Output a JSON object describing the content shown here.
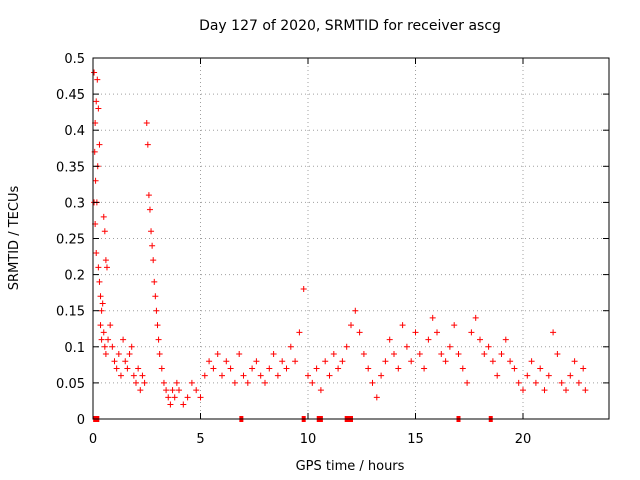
{
  "chart_data": {
    "type": "scatter",
    "title": "Day 127 of 2020, SRMTID for receiver ascg",
    "xlabel": "GPS time / hours",
    "ylabel": "SRMTID / TECUs",
    "xlim": [
      0,
      24
    ],
    "ylim": [
      0,
      0.5
    ],
    "xticks": [
      0,
      5,
      10,
      15,
      20
    ],
    "xtick_labels": [
      "0",
      "5",
      "10",
      "15",
      "20"
    ],
    "yticks": [
      0,
      0.05,
      0.1,
      0.15,
      0.2,
      0.25,
      0.3,
      0.35,
      0.4,
      0.45,
      0.5
    ],
    "ytick_labels": [
      "0",
      "0.05",
      "0.1",
      "0.15",
      "0.2",
      "0.25",
      "0.3",
      "0.35",
      "0.4",
      "0.45",
      "0.5"
    ],
    "grid": true,
    "marker": "+",
    "series": [
      {
        "name": "SRMTID",
        "color": "#ff0000",
        "points": [
          [
            0.05,
            0.48
          ],
          [
            0.1,
            0.41
          ],
          [
            0.08,
            0.37
          ],
          [
            0.15,
            0.44
          ],
          [
            0.2,
            0.47
          ],
          [
            0.25,
            0.43
          ],
          [
            0.3,
            0.38
          ],
          [
            0.12,
            0.33
          ],
          [
            0.18,
            0.3
          ],
          [
            0.22,
            0.35
          ],
          [
            0.05,
            0.3
          ],
          [
            0.1,
            0.27
          ],
          [
            0.15,
            0.23
          ],
          [
            0.25,
            0.21
          ],
          [
            0.3,
            0.19
          ],
          [
            0.35,
            0.17
          ],
          [
            0.4,
            0.15
          ],
          [
            0.45,
            0.16
          ],
          [
            0.5,
            0.28
          ],
          [
            0.55,
            0.26
          ],
          [
            0.6,
            0.22
          ],
          [
            0.65,
            0.21
          ],
          [
            0.35,
            0.13
          ],
          [
            0.4,
            0.11
          ],
          [
            0.5,
            0.12
          ],
          [
            0.55,
            0.1
          ],
          [
            0.6,
            0.09
          ],
          [
            0.7,
            0.11
          ],
          [
            0.8,
            0.13
          ],
          [
            0.9,
            0.1
          ],
          [
            1.0,
            0.08
          ],
          [
            1.1,
            0.07
          ],
          [
            1.2,
            0.09
          ],
          [
            1.3,
            0.06
          ],
          [
            1.4,
            0.11
          ],
          [
            1.5,
            0.08
          ],
          [
            1.6,
            0.07
          ],
          [
            1.7,
            0.09
          ],
          [
            1.8,
            0.1
          ],
          [
            1.9,
            0.06
          ],
          [
            2.0,
            0.05
          ],
          [
            2.1,
            0.07
          ],
          [
            2.2,
            0.04
          ],
          [
            2.3,
            0.06
          ],
          [
            2.4,
            0.05
          ],
          [
            2.5,
            0.41
          ],
          [
            2.55,
            0.38
          ],
          [
            2.6,
            0.31
          ],
          [
            2.65,
            0.29
          ],
          [
            2.7,
            0.26
          ],
          [
            2.75,
            0.24
          ],
          [
            2.8,
            0.22
          ],
          [
            2.85,
            0.19
          ],
          [
            2.9,
            0.17
          ],
          [
            2.95,
            0.15
          ],
          [
            3.0,
            0.13
          ],
          [
            3.05,
            0.11
          ],
          [
            3.1,
            0.09
          ],
          [
            3.2,
            0.07
          ],
          [
            3.3,
            0.05
          ],
          [
            3.4,
            0.04
          ],
          [
            3.5,
            0.03
          ],
          [
            3.6,
            0.02
          ],
          [
            3.7,
            0.04
          ],
          [
            3.8,
            0.03
          ],
          [
            3.9,
            0.05
          ],
          [
            4.0,
            0.04
          ],
          [
            4.2,
            0.02
          ],
          [
            4.4,
            0.03
          ],
          [
            4.6,
            0.05
          ],
          [
            4.8,
            0.04
          ],
          [
            5.0,
            0.03
          ],
          [
            5.2,
            0.06
          ],
          [
            5.4,
            0.08
          ],
          [
            5.6,
            0.07
          ],
          [
            5.8,
            0.09
          ],
          [
            6.0,
            0.06
          ],
          [
            6.2,
            0.08
          ],
          [
            6.4,
            0.07
          ],
          [
            6.6,
            0.05
          ],
          [
            6.8,
            0.09
          ],
          [
            7.0,
            0.06
          ],
          [
            7.2,
            0.05
          ],
          [
            7.4,
            0.07
          ],
          [
            7.6,
            0.08
          ],
          [
            7.8,
            0.06
          ],
          [
            8.0,
            0.05
          ],
          [
            8.2,
            0.07
          ],
          [
            8.4,
            0.09
          ],
          [
            8.6,
            0.06
          ],
          [
            8.8,
            0.08
          ],
          [
            9.0,
            0.07
          ],
          [
            9.2,
            0.1
          ],
          [
            9.4,
            0.08
          ],
          [
            9.6,
            0.12
          ],
          [
            9.8,
            0.18
          ],
          [
            10.0,
            0.06
          ],
          [
            10.2,
            0.05
          ],
          [
            10.4,
            0.07
          ],
          [
            10.6,
            0.04
          ],
          [
            10.8,
            0.08
          ],
          [
            11.0,
            0.06
          ],
          [
            11.2,
            0.09
          ],
          [
            11.4,
            0.07
          ],
          [
            11.6,
            0.08
          ],
          [
            11.8,
            0.1
          ],
          [
            12.0,
            0.13
          ],
          [
            12.2,
            0.15
          ],
          [
            12.4,
            0.12
          ],
          [
            12.6,
            0.09
          ],
          [
            12.8,
            0.07
          ],
          [
            13.0,
            0.05
          ],
          [
            13.2,
            0.03
          ],
          [
            13.4,
            0.06
          ],
          [
            13.6,
            0.08
          ],
          [
            13.8,
            0.11
          ],
          [
            14.0,
            0.09
          ],
          [
            14.2,
            0.07
          ],
          [
            14.4,
            0.13
          ],
          [
            14.6,
            0.1
          ],
          [
            14.8,
            0.08
          ],
          [
            15.0,
            0.12
          ],
          [
            15.2,
            0.09
          ],
          [
            15.4,
            0.07
          ],
          [
            15.6,
            0.11
          ],
          [
            15.8,
            0.14
          ],
          [
            16.0,
            0.12
          ],
          [
            16.2,
            0.09
          ],
          [
            16.4,
            0.08
          ],
          [
            16.6,
            0.1
          ],
          [
            16.8,
            0.13
          ],
          [
            17.0,
            0.09
          ],
          [
            17.2,
            0.07
          ],
          [
            17.4,
            0.05
          ],
          [
            17.6,
            0.12
          ],
          [
            17.8,
            0.14
          ],
          [
            18.0,
            0.11
          ],
          [
            18.2,
            0.09
          ],
          [
            18.4,
            0.1
          ],
          [
            18.6,
            0.08
          ],
          [
            18.8,
            0.06
          ],
          [
            19.0,
            0.09
          ],
          [
            19.2,
            0.11
          ],
          [
            19.4,
            0.08
          ],
          [
            19.6,
            0.07
          ],
          [
            19.8,
            0.05
          ],
          [
            20.0,
            0.04
          ],
          [
            20.2,
            0.06
          ],
          [
            20.4,
            0.08
          ],
          [
            20.6,
            0.05
          ],
          [
            20.8,
            0.07
          ],
          [
            21.0,
            0.04
          ],
          [
            21.2,
            0.06
          ],
          [
            21.4,
            0.12
          ],
          [
            21.6,
            0.09
          ],
          [
            21.8,
            0.05
          ],
          [
            22.0,
            0.04
          ],
          [
            22.2,
            0.06
          ],
          [
            22.4,
            0.08
          ],
          [
            22.6,
            0.05
          ],
          [
            22.8,
            0.07
          ],
          [
            22.9,
            0.04
          ]
        ]
      }
    ],
    "zero_markers_x": [
      0.1,
      0.2,
      6.9,
      9.8,
      10.5,
      10.6,
      11.8,
      11.9,
      12.0,
      17.0,
      18.5
    ]
  }
}
